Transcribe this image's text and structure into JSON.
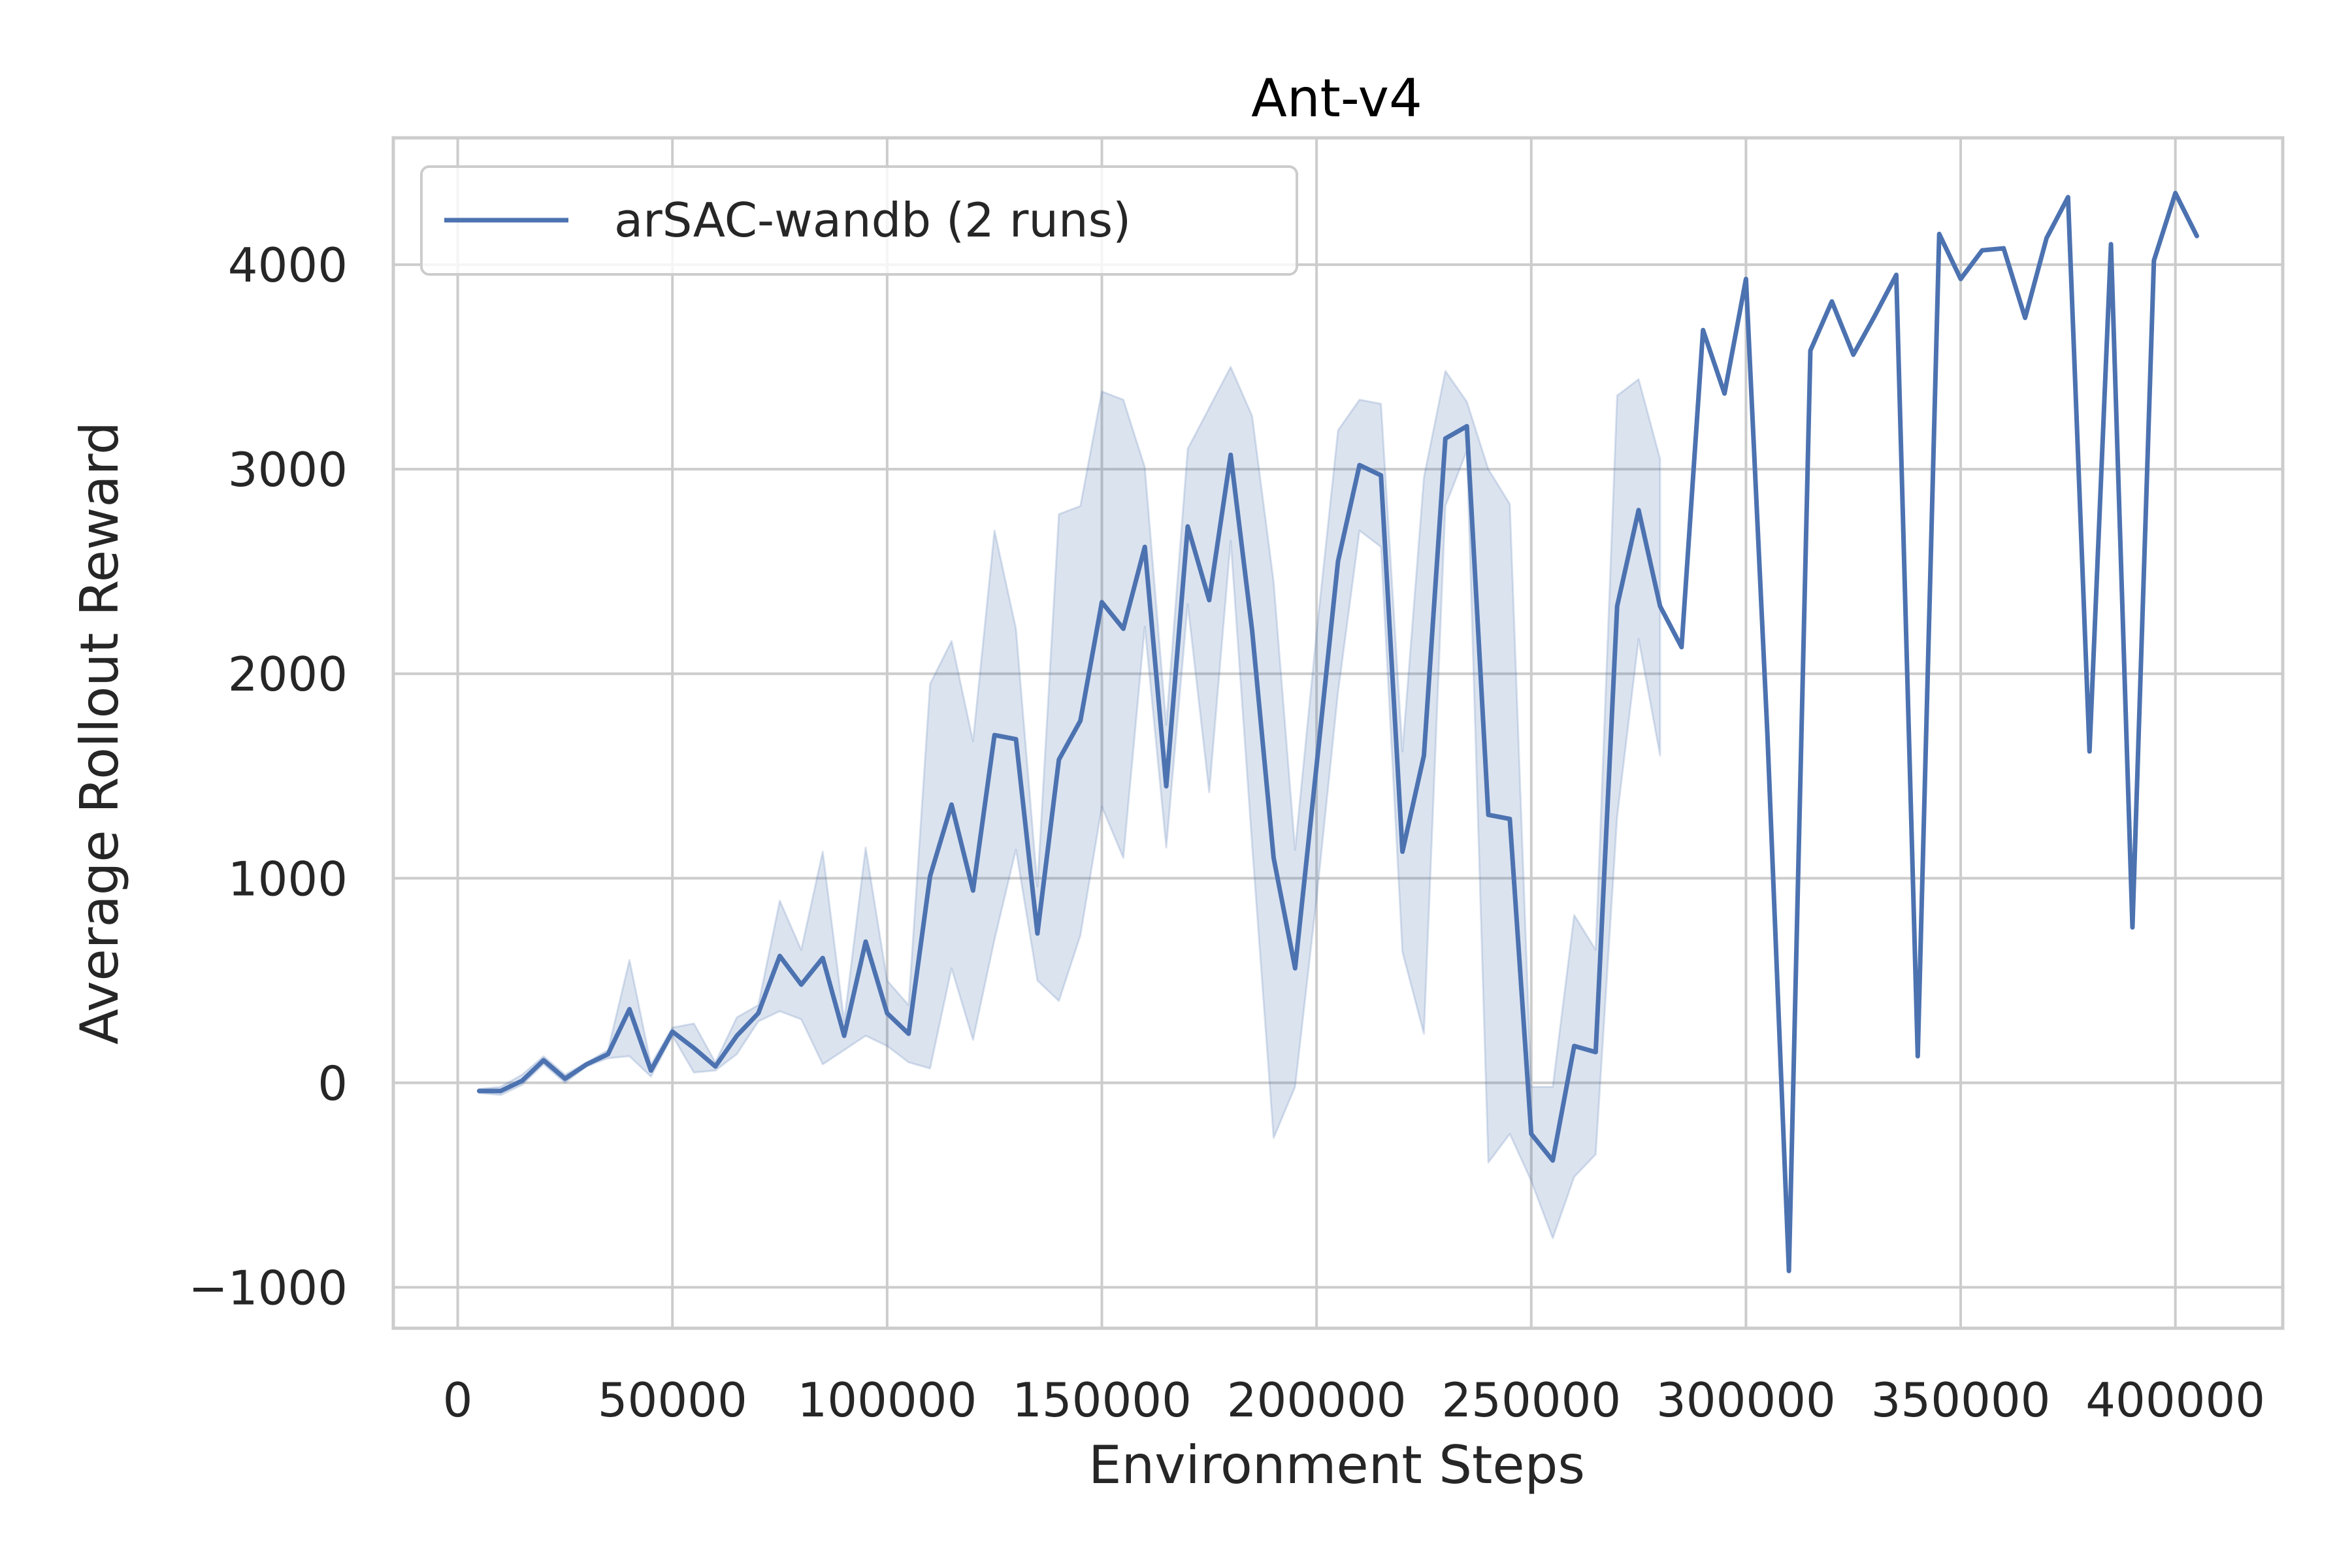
{
  "chart_data": {
    "type": "line",
    "title": "Ant-v4",
    "xlabel": "Environment Steps",
    "ylabel": "Average Rollout Reward",
    "xlim": [
      -15000,
      425000
    ],
    "ylim": [
      -1200,
      4620
    ],
    "xticks": [
      0,
      50000,
      100000,
      150000,
      200000,
      250000,
      300000,
      350000,
      400000
    ],
    "yticks": [
      -1000,
      0,
      1000,
      2000,
      3000,
      4000
    ],
    "ytick_labels": [
      "−1000",
      "0",
      "1000",
      "2000",
      "3000",
      "4000"
    ],
    "grid": true,
    "legend_position": "top-left",
    "series": [
      {
        "name": "arSAC-wandb (2 runs)",
        "color": "#4c72b0",
        "band_color": "#4c72b0",
        "x": [
          5000,
          10000,
          15000,
          20000,
          25000,
          30000,
          35000,
          40000,
          45000,
          50000,
          55000,
          60000,
          65000,
          70000,
          75000,
          80000,
          85000,
          90000,
          95000,
          100000,
          105000,
          110000,
          115000,
          120000,
          125000,
          130000,
          135000,
          140000,
          145000,
          150000,
          155000,
          160000,
          165000,
          170000,
          175000,
          180000,
          185000,
          190000,
          195000,
          200000,
          205000,
          210000,
          215000,
          220000,
          225000,
          230000,
          235000,
          240000,
          245000,
          250000,
          255000,
          260000,
          265000,
          270000,
          275000,
          280000,
          285000,
          290000,
          295000,
          300000,
          305000,
          310000,
          315000,
          320000,
          325000,
          330000,
          335000,
          340000,
          345000,
          350000,
          355000,
          360000,
          365000,
          370000,
          375000,
          380000,
          385000,
          390000,
          395000,
          400000,
          405000
        ],
        "y": [
          -40,
          -40,
          10,
          110,
          20,
          90,
          140,
          360,
          60,
          250,
          170,
          80,
          230,
          340,
          620,
          480,
          610,
          230,
          690,
          340,
          240,
          1010,
          1360,
          940,
          1700,
          1680,
          730,
          1580,
          1770,
          2350,
          2220,
          2620,
          1450,
          2720,
          2360,
          3070,
          2210,
          1100,
          560,
          1550,
          2550,
          3020,
          2970,
          1130,
          1600,
          3150,
          3210,
          1310,
          1290,
          -250,
          -380,
          180,
          150,
          2330,
          2800,
          2330,
          2130,
          3680,
          3370,
          3930,
          1700,
          -920,
          3580,
          3820,
          3560,
          3750,
          3950,
          130,
          4150,
          3930,
          4070,
          4080,
          3740,
          4130,
          4330,
          1620,
          4100,
          760,
          4020,
          4350,
          4140
        ],
        "band_x": [
          5000,
          10000,
          15000,
          20000,
          25000,
          30000,
          35000,
          40000,
          45000,
          50000,
          55000,
          60000,
          65000,
          70000,
          75000,
          80000,
          85000,
          90000,
          95000,
          100000,
          105000,
          110000,
          115000,
          120000,
          125000,
          130000,
          135000,
          140000,
          145000,
          150000,
          155000,
          160000,
          165000,
          170000,
          175000,
          180000,
          185000,
          190000,
          195000,
          200000,
          205000,
          210000,
          215000,
          220000,
          225000,
          230000,
          235000,
          240000,
          245000,
          250000,
          255000,
          260000,
          265000,
          270000,
          275000,
          280000
        ],
        "band_upper": [
          -30,
          -20,
          40,
          130,
          40,
          100,
          160,
          600,
          90,
          270,
          290,
          100,
          320,
          380,
          890,
          650,
          1130,
          300,
          1150,
          500,
          380,
          1950,
          2160,
          1670,
          2700,
          2220,
          960,
          2780,
          2820,
          3380,
          3340,
          3010,
          1750,
          3100,
          3300,
          3500,
          3260,
          2450,
          1140,
          2200,
          3190,
          3340,
          3320,
          1620,
          2960,
          3480,
          3330,
          3000,
          2830,
          -20,
          -20,
          820,
          650,
          3360,
          3440,
          3050
        ],
        "band_lower": [
          -50,
          -60,
          -10,
          90,
          0,
          80,
          120,
          130,
          30,
          230,
          50,
          60,
          140,
          300,
          350,
          310,
          90,
          160,
          230,
          180,
          100,
          70,
          560,
          210,
          700,
          1140,
          500,
          400,
          720,
          1350,
          1100,
          2230,
          1150,
          2340,
          1420,
          2650,
          1160,
          -270,
          -20,
          900,
          1910,
          2700,
          2620,
          640,
          240,
          2820,
          3090,
          -390,
          -250,
          -480,
          -760,
          -460,
          -350,
          1300,
          2170,
          1600
        ]
      }
    ]
  }
}
